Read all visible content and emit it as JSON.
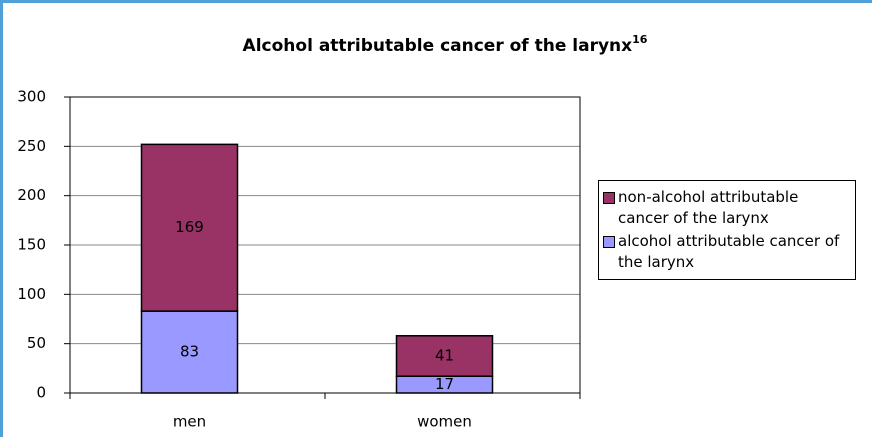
{
  "chart_data": {
    "type": "stacked_bar",
    "title": "Alcohol attributable cancer of the larynx",
    "title_note": "16",
    "categories": [
      "men",
      "women"
    ],
    "series": [
      {
        "name": "alcohol attributable cancer of the larynx",
        "color": "#9999ff",
        "values": [
          83,
          17
        ]
      },
      {
        "name": "non-alcohol attributable cancer of the larynx",
        "color": "#993366",
        "values": [
          169,
          41
        ]
      }
    ],
    "ylim": [
      0,
      300
    ],
    "yticks": [
      0,
      50,
      100,
      150,
      200,
      250,
      300
    ],
    "grid": true,
    "legend": "right"
  }
}
